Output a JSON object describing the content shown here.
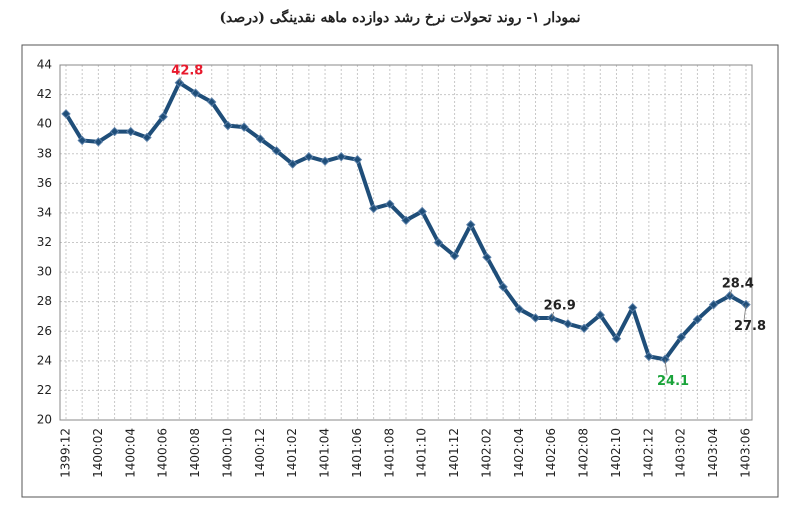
{
  "chart_data": {
    "type": "line",
    "title": "نمودار ۱- روند تحولات نرخ رشد دوازده ماهه نقدینگی (درصد)",
    "categories": [
      "1399:12",
      null,
      "1400:02",
      null,
      "1400:04",
      null,
      "1400:06",
      null,
      "1400:08",
      null,
      "1400:10",
      null,
      "1400:12",
      null,
      "1401:02",
      null,
      "1401:04",
      null,
      "1401:06",
      null,
      "1401:08",
      null,
      "1401:10",
      null,
      "1401:12",
      null,
      "1402:02",
      null,
      "1402:04",
      null,
      "1402:06",
      null,
      "1402:08",
      null,
      "1402:10",
      null,
      "1402:12",
      null,
      "1403:02",
      null,
      "1403:04",
      null,
      "1403:06"
    ],
    "series": [
      {
        "color": "#1f4e79",
        "values": [
          40.7,
          38.9,
          38.8,
          39.5,
          39.5,
          39.1,
          40.5,
          42.8,
          42.1,
          41.5,
          39.9,
          39.8,
          39.0,
          38.2,
          37.3,
          37.8,
          37.5,
          37.8,
          37.6,
          34.3,
          34.6,
          33.5,
          34.1,
          32.0,
          31.1,
          33.2,
          31.0,
          29.0,
          27.5,
          26.9,
          26.9,
          26.5,
          26.2,
          27.1,
          25.5,
          27.6,
          24.3,
          24.1,
          25.6,
          26.8,
          27.8,
          28.4,
          27.8
        ]
      }
    ],
    "data_labels": [
      {
        "index": 7,
        "color": "#e8192c"
      },
      {
        "index": 30,
        "color": "#222222"
      },
      {
        "index": 37,
        "color": "#1aa33a"
      },
      {
        "index": 41,
        "color": "#222222"
      },
      {
        "index": 42,
        "color": "#222222"
      }
    ],
    "ylim": [
      20,
      44
    ],
    "yticks": [
      20,
      22,
      24,
      26,
      28,
      30,
      32,
      34,
      36,
      38,
      40,
      42,
      44
    ],
    "grid": true
  }
}
